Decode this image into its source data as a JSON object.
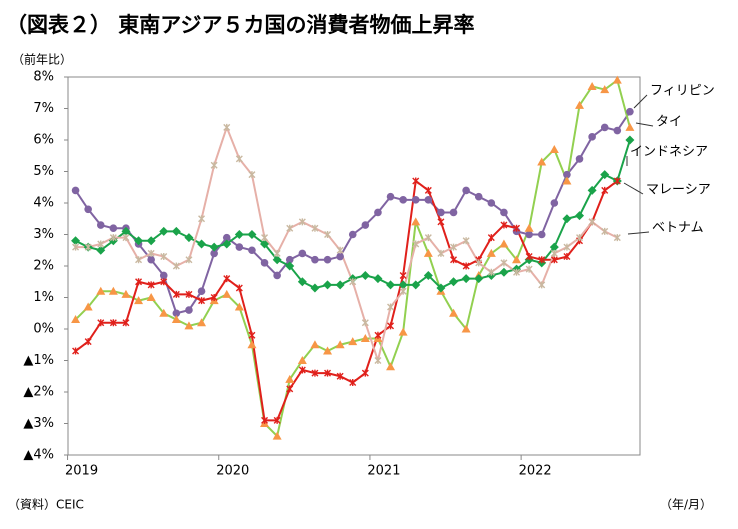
{
  "chart_data": {
    "type": "line",
    "title": "（図表２） 東南アジア５カ国の消費者物価上昇率",
    "y_label": "（前年比）",
    "x_label": "（年/月）",
    "source": "（資料）CEIC",
    "x": [
      0,
      1,
      2,
      3,
      4,
      5,
      6,
      7,
      8,
      9,
      10,
      11,
      12,
      13,
      14,
      15,
      16,
      17,
      18,
      19,
      20,
      21,
      22,
      23,
      24,
      25,
      26,
      27,
      28,
      29,
      30,
      31,
      32,
      33,
      34,
      35,
      36,
      37,
      38,
      39,
      40,
      41,
      42,
      43,
      44
    ],
    "xlim": [
      -0.6,
      44.8
    ],
    "xticks": [
      {
        "value": 0,
        "label": "2019"
      },
      {
        "value": 12,
        "label": "2020"
      },
      {
        "value": 24,
        "label": "2021"
      },
      {
        "value": 36,
        "label": "2022"
      }
    ],
    "ylim": [
      -4,
      8
    ],
    "yticks": [
      {
        "value": 8,
        "label": "8%"
      },
      {
        "value": 7,
        "label": "7%"
      },
      {
        "value": 6,
        "label": "6%"
      },
      {
        "value": 5,
        "label": "5%"
      },
      {
        "value": 4,
        "label": "4%"
      },
      {
        "value": 3,
        "label": "3%"
      },
      {
        "value": 2,
        "label": "2%"
      },
      {
        "value": 1,
        "label": "1%"
      },
      {
        "value": 0,
        "label": "0%"
      },
      {
        "value": -1,
        "label": "▲1%"
      },
      {
        "value": -2,
        "label": "▲2%"
      },
      {
        "value": -3,
        "label": "▲3%"
      },
      {
        "value": -4,
        "label": "▲4%"
      }
    ],
    "grid": false,
    "series": [
      {
        "name": "フィリピン",
        "color": "#8064a2",
        "marker_color": "#8064a2",
        "marker": "circle",
        "values": [
          4.4,
          3.8,
          3.3,
          3.2,
          3.2,
          2.7,
          2.2,
          1.7,
          0.5,
          0.6,
          1.2,
          2.4,
          2.9,
          2.6,
          2.5,
          2.1,
          1.7,
          2.2,
          2.4,
          2.2,
          2.2,
          2.3,
          3.0,
          3.3,
          3.7,
          4.2,
          4.1,
          4.1,
          4.1,
          3.7,
          3.7,
          4.4,
          4.2,
          4.0,
          3.7,
          3.1,
          3.0,
          3.0,
          4.0,
          4.9,
          5.4,
          6.1,
          6.4,
          6.3,
          6.9
        ]
      },
      {
        "name": "タイ",
        "color": "#92d050",
        "marker_color": "#f79646",
        "marker": "triangle",
        "values": [
          0.3,
          0.7,
          1.2,
          1.2,
          1.1,
          0.9,
          1.0,
          0.5,
          0.3,
          0.1,
          0.2,
          0.9,
          1.1,
          0.7,
          -0.5,
          -3.0,
          -3.4,
          -1.6,
          -1.0,
          -0.5,
          -0.7,
          -0.5,
          -0.4,
          -0.3,
          -0.3,
          -1.2,
          -0.1,
          3.4,
          2.4,
          1.2,
          0.5,
          0.0,
          1.7,
          2.4,
          2.7,
          2.2,
          3.2,
          5.3,
          5.7,
          4.7,
          7.1,
          7.7,
          7.6,
          7.9,
          6.4
        ]
      },
      {
        "name": "インドネシア",
        "color": "#1aa34a",
        "marker_color": "#1aa34a",
        "marker": "diamond",
        "values": [
          2.8,
          2.6,
          2.5,
          2.8,
          3.1,
          2.8,
          2.8,
          3.1,
          3.1,
          2.9,
          2.7,
          2.6,
          2.7,
          3.0,
          3.0,
          2.7,
          2.2,
          2.0,
          1.5,
          1.3,
          1.4,
          1.4,
          1.6,
          1.7,
          1.6,
          1.4,
          1.4,
          1.4,
          1.7,
          1.3,
          1.5,
          1.6,
          1.6,
          1.7,
          1.8,
          1.9,
          2.2,
          2.1,
          2.6,
          3.5,
          3.6,
          4.4,
          4.9,
          4.7,
          6.0
        ]
      },
      {
        "name": "マレーシア",
        "color": "#e0201b",
        "marker_color": "#e0201b",
        "marker": "x",
        "values": [
          -0.7,
          -0.4,
          0.2,
          0.2,
          0.2,
          1.5,
          1.4,
          1.5,
          1.1,
          1.1,
          0.9,
          1.0,
          1.6,
          1.3,
          -0.2,
          -2.9,
          -2.9,
          -1.9,
          -1.3,
          -1.4,
          -1.4,
          -1.5,
          -1.7,
          -1.4,
          -0.2,
          0.1,
          1.7,
          4.7,
          4.4,
          3.4,
          2.2,
          2.0,
          2.2,
          2.9,
          3.3,
          3.2,
          2.3,
          2.2,
          2.2,
          2.3,
          2.8,
          3.4,
          4.4,
          4.7,
          null
        ]
      },
      {
        "name": "ベトナム",
        "color": "#e6b0a8",
        "marker_color": "#c9b8a0",
        "marker": "x",
        "values": [
          2.6,
          2.6,
          2.7,
          2.9,
          2.9,
          2.2,
          2.4,
          2.3,
          2.0,
          2.2,
          3.5,
          5.2,
          6.4,
          5.4,
          4.9,
          2.9,
          2.4,
          3.2,
          3.4,
          3.2,
          3.0,
          2.5,
          1.5,
          0.2,
          -1.0,
          0.7,
          1.2,
          2.7,
          2.9,
          2.4,
          2.6,
          2.8,
          2.1,
          1.8,
          2.1,
          1.8,
          1.9,
          1.4,
          2.4,
          2.6,
          2.9,
          3.4,
          3.1,
          2.9,
          null
        ]
      }
    ]
  }
}
